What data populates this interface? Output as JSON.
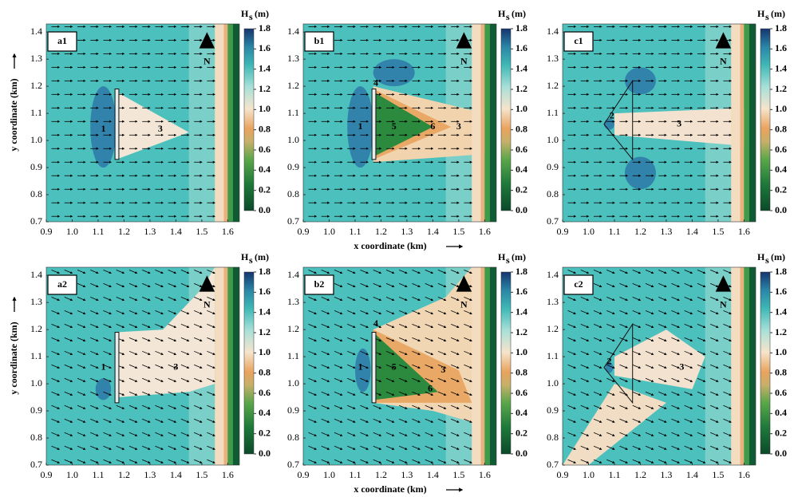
{
  "chart_data": [
    {
      "type": "heatmap",
      "title": "a1",
      "ylabel": "y coordinate (km)",
      "north": "N",
      "xlim": [
        0.9,
        1.645
      ],
      "ylim": [
        0.7,
        1.43
      ],
      "xticks": [
        0.9,
        {
          "value": 1,
          "label": "1.0"
        },
        1.1,
        1.2,
        1.3,
        1.4,
        1.5,
        1.6
      ],
      "yticks": [
        0.7,
        0.8,
        0.9,
        {
          "value": 1,
          "label": "1.0"
        },
        1.1,
        1.2,
        1.3,
        1.4
      ],
      "colorbar": {
        "label": "H",
        "label_sub": "s",
        "unit": "(m)",
        "lim": [
          0,
          1.8
        ],
        "ticks": [
          {
            "value": 0,
            "label": "0.0"
          },
          0.2,
          0.4,
          0.6,
          0.8,
          {
            "value": 1,
            "label": "1.0"
          },
          1.2,
          1.4,
          1.6,
          1.8
        ]
      },
      "annotations": [
        {
          "text": "1",
          "x": 1.12,
          "y": 1.04,
          "color": "#ffffff"
        },
        {
          "text": "3",
          "x": 1.34,
          "y": 1.04,
          "color": "#000000"
        }
      ]
    },
    {
      "type": "heatmap",
      "title": "b1",
      "xlabel": "x coordinate (km)",
      "north": "N",
      "xlim": [
        0.9,
        1.645
      ],
      "ylim": [
        0.7,
        1.43
      ],
      "xticks": [
        0.9,
        {
          "value": 1,
          "label": "1.0"
        },
        1.1,
        1.2,
        1.3,
        1.4,
        1.5,
        1.6
      ],
      "yticks": [
        0.7,
        0.8,
        0.9,
        {
          "value": 1,
          "label": "1.0"
        },
        1.1,
        1.2,
        1.3,
        1.4
      ],
      "colorbar": {
        "label": "H",
        "label_sub": "s",
        "unit": "(m)",
        "lim": [
          0,
          1.8
        ],
        "ticks": [
          {
            "value": 0,
            "label": "0.0"
          },
          0.2,
          0.4,
          0.6,
          0.8,
          {
            "value": 1,
            "label": "1.0"
          },
          1.2,
          1.4,
          1.6,
          1.8
        ]
      },
      "annotations": [
        {
          "text": "4",
          "x": 1.18,
          "y": 1.21,
          "color": "#ffffff"
        },
        {
          "text": "1",
          "x": 1.12,
          "y": 1.05,
          "color": "#ffffff"
        },
        {
          "text": "5",
          "x": 1.25,
          "y": 1.05,
          "color": "#ffffff"
        },
        {
          "text": "6",
          "x": 1.4,
          "y": 1.05,
          "color": "#ffffff"
        },
        {
          "text": "3",
          "x": 1.5,
          "y": 1.05,
          "color": "#000000"
        }
      ]
    },
    {
      "type": "heatmap",
      "title": "c1",
      "north": "N",
      "xlim": [
        0.9,
        1.645
      ],
      "ylim": [
        0.7,
        1.43
      ],
      "xticks": [
        0.9,
        {
          "value": 1,
          "label": "1.0"
        },
        1.1,
        1.2,
        1.3,
        1.4,
        1.5,
        1.6
      ],
      "yticks": [
        0.7,
        0.8,
        0.9,
        {
          "value": 1,
          "label": "1.0"
        },
        1.1,
        1.2,
        1.3,
        1.4
      ],
      "colorbar": {
        "label": "H",
        "label_sub": "s",
        "unit": "(m)",
        "lim": [
          0,
          1.8
        ],
        "ticks": [
          {
            "value": 0,
            "label": "0.0"
          },
          0.2,
          0.4,
          0.6,
          0.8,
          {
            "value": 1,
            "label": "1.0"
          },
          1.2,
          1.4,
          1.6,
          1.8
        ]
      },
      "annotations": [
        {
          "text": "2",
          "x": 1.09,
          "y": 1.09,
          "color": "#ffffff"
        },
        {
          "text": "3",
          "x": 1.35,
          "y": 1.06,
          "color": "#000000"
        }
      ]
    },
    {
      "type": "heatmap",
      "title": "a2",
      "ylabel": "y coordinate (km)",
      "north": "N",
      "xlim": [
        0.9,
        1.645
      ],
      "ylim": [
        0.7,
        1.43
      ],
      "xticks": [
        0.9,
        {
          "value": 1,
          "label": "1.0"
        },
        1.1,
        1.2,
        1.3,
        1.4,
        1.5,
        1.6
      ],
      "yticks": [
        0.7,
        0.8,
        0.9,
        {
          "value": 1,
          "label": "1.0"
        },
        1.1,
        1.2,
        1.3,
        1.4
      ],
      "colorbar": {
        "label": "H",
        "label_sub": "s",
        "unit": "(m)",
        "lim": [
          0,
          1.8
        ],
        "ticks": [
          {
            "value": 0,
            "label": "0.0"
          },
          0.2,
          0.4,
          0.6,
          0.8,
          {
            "value": 1,
            "label": "1.0"
          },
          1.2,
          1.4,
          1.6,
          1.8
        ]
      },
      "annotations": [
        {
          "text": "1",
          "x": 1.12,
          "y": 1.06,
          "color": "#ffffff"
        },
        {
          "text": "3",
          "x": 1.4,
          "y": 1.06,
          "color": "#000000"
        }
      ]
    },
    {
      "type": "heatmap",
      "title": "b2",
      "xlabel": "x coordinate (km)",
      "north": "N",
      "xlim": [
        0.9,
        1.645
      ],
      "ylim": [
        0.7,
        1.43
      ],
      "xticks": [
        0.9,
        {
          "value": 1,
          "label": "1.0"
        },
        1.1,
        1.2,
        1.3,
        1.4,
        1.5,
        1.6
      ],
      "yticks": [
        0.7,
        0.8,
        0.9,
        {
          "value": 1,
          "label": "1.0"
        },
        1.1,
        1.2,
        1.3,
        1.4
      ],
      "colorbar": {
        "label": "H",
        "label_sub": "s",
        "unit": "(m)",
        "lim": [
          0,
          1.8
        ],
        "ticks": [
          {
            "value": 0,
            "label": "0.0"
          },
          0.2,
          0.4,
          0.6,
          0.8,
          {
            "value": 1,
            "label": "1.0"
          },
          1.2,
          1.4,
          1.6,
          1.8
        ]
      },
      "annotations": [
        {
          "text": "4",
          "x": 1.18,
          "y": 1.22,
          "color": "#ffffff"
        },
        {
          "text": "1",
          "x": 1.12,
          "y": 1.06,
          "color": "#ffffff"
        },
        {
          "text": "5",
          "x": 1.25,
          "y": 1.06,
          "color": "#ffffff"
        },
        {
          "text": "6",
          "x": 1.39,
          "y": 0.98,
          "color": "#ffffff"
        },
        {
          "text": "3",
          "x": 1.44,
          "y": 1.05,
          "color": "#000000"
        }
      ]
    },
    {
      "type": "heatmap",
      "title": "c2",
      "north": "N",
      "xlim": [
        0.9,
        1.645
      ],
      "ylim": [
        0.7,
        1.43
      ],
      "xticks": [
        0.9,
        {
          "value": 1,
          "label": "1.0"
        },
        1.1,
        1.2,
        1.3,
        1.4,
        1.5,
        1.6
      ],
      "yticks": [
        0.7,
        0.8,
        0.9,
        {
          "value": 1,
          "label": "1.0"
        },
        1.1,
        1.2,
        1.3,
        1.4
      ],
      "colorbar": {
        "label": "H",
        "label_sub": "s",
        "unit": "(m)",
        "lim": [
          0,
          1.8
        ],
        "ticks": [
          {
            "value": 0,
            "label": "0.0"
          },
          0.2,
          0.4,
          0.6,
          0.8,
          {
            "value": 1,
            "label": "1.0"
          },
          1.2,
          1.4,
          1.6,
          1.8
        ]
      },
      "annotations": [
        {
          "text": "2",
          "x": 1.08,
          "y": 1.08,
          "color": "#ffffff"
        },
        {
          "text": "3",
          "x": 1.36,
          "y": 1.06,
          "color": "#000000"
        }
      ]
    }
  ]
}
